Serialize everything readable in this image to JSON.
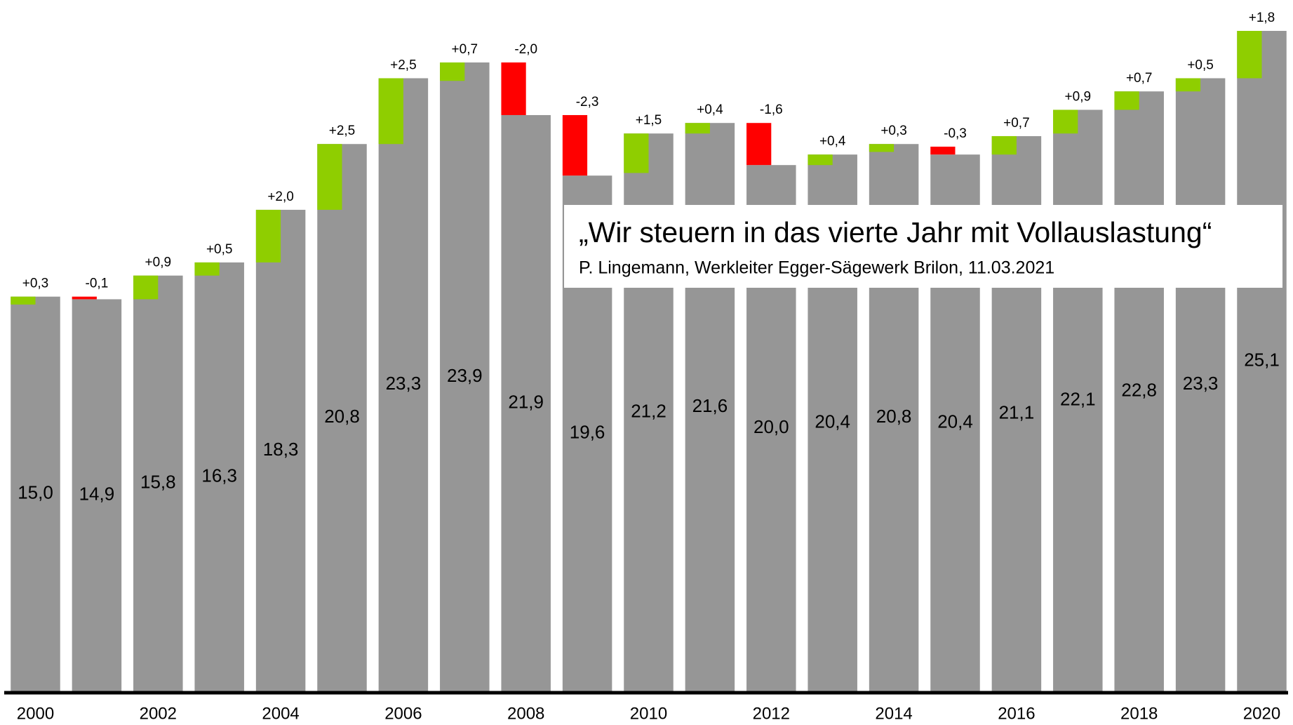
{
  "chart_data": {
    "type": "waterfall-bar",
    "categories": [
      "2000",
      null,
      "2002",
      null,
      "2004",
      null,
      "2006",
      null,
      "2008",
      null,
      "2010",
      null,
      "2012",
      null,
      "2014",
      null,
      "2016",
      null,
      "2018",
      null,
      "2020"
    ],
    "values": [
      15.0,
      14.9,
      15.8,
      16.3,
      18.3,
      20.8,
      23.3,
      23.9,
      21.9,
      19.6,
      21.2,
      21.6,
      20.0,
      20.4,
      20.8,
      20.4,
      21.1,
      22.1,
      22.8,
      23.3,
      25.1
    ],
    "value_labels": [
      "15,0",
      "14,9",
      "15,8",
      "16,3",
      "18,3",
      "20,8",
      "23,3",
      "23,9",
      "21,9",
      "19,6",
      "21,2",
      "21,6",
      "20,0",
      "20,4",
      "20,8",
      "20,4",
      "21,1",
      "22,1",
      "22,8",
      "23,3",
      "25,1"
    ],
    "changes": [
      0.3,
      -0.1,
      0.9,
      0.5,
      2.0,
      2.5,
      2.5,
      0.7,
      -2.0,
      -2.3,
      1.5,
      0.4,
      -1.6,
      0.4,
      0.3,
      -0.3,
      0.7,
      0.9,
      0.7,
      0.5,
      1.8
    ],
    "change_labels": [
      "+0,3",
      "-0,1",
      "+0,9",
      "+0,5",
      "+2,0",
      "+2,5",
      "+2,5",
      "+0,7",
      "-2,0",
      "-2,3",
      "+1,5",
      "+0,4",
      "-1,6",
      "+0,4",
      "+0,3",
      "-0,3",
      "+0,7",
      "+0,9",
      "+0,7",
      "+0,5",
      "+1,8"
    ],
    "color": "#969696",
    "increase_color": "#8fce00",
    "decrease_color": "#ff0000",
    "quote": "„Wir steuern in das vierte Jahr mit Vollauslastung“",
    "source": "P. Lingemann, Werkleiter Egger-Sägewerk Brilon, 11.03.2021"
  }
}
